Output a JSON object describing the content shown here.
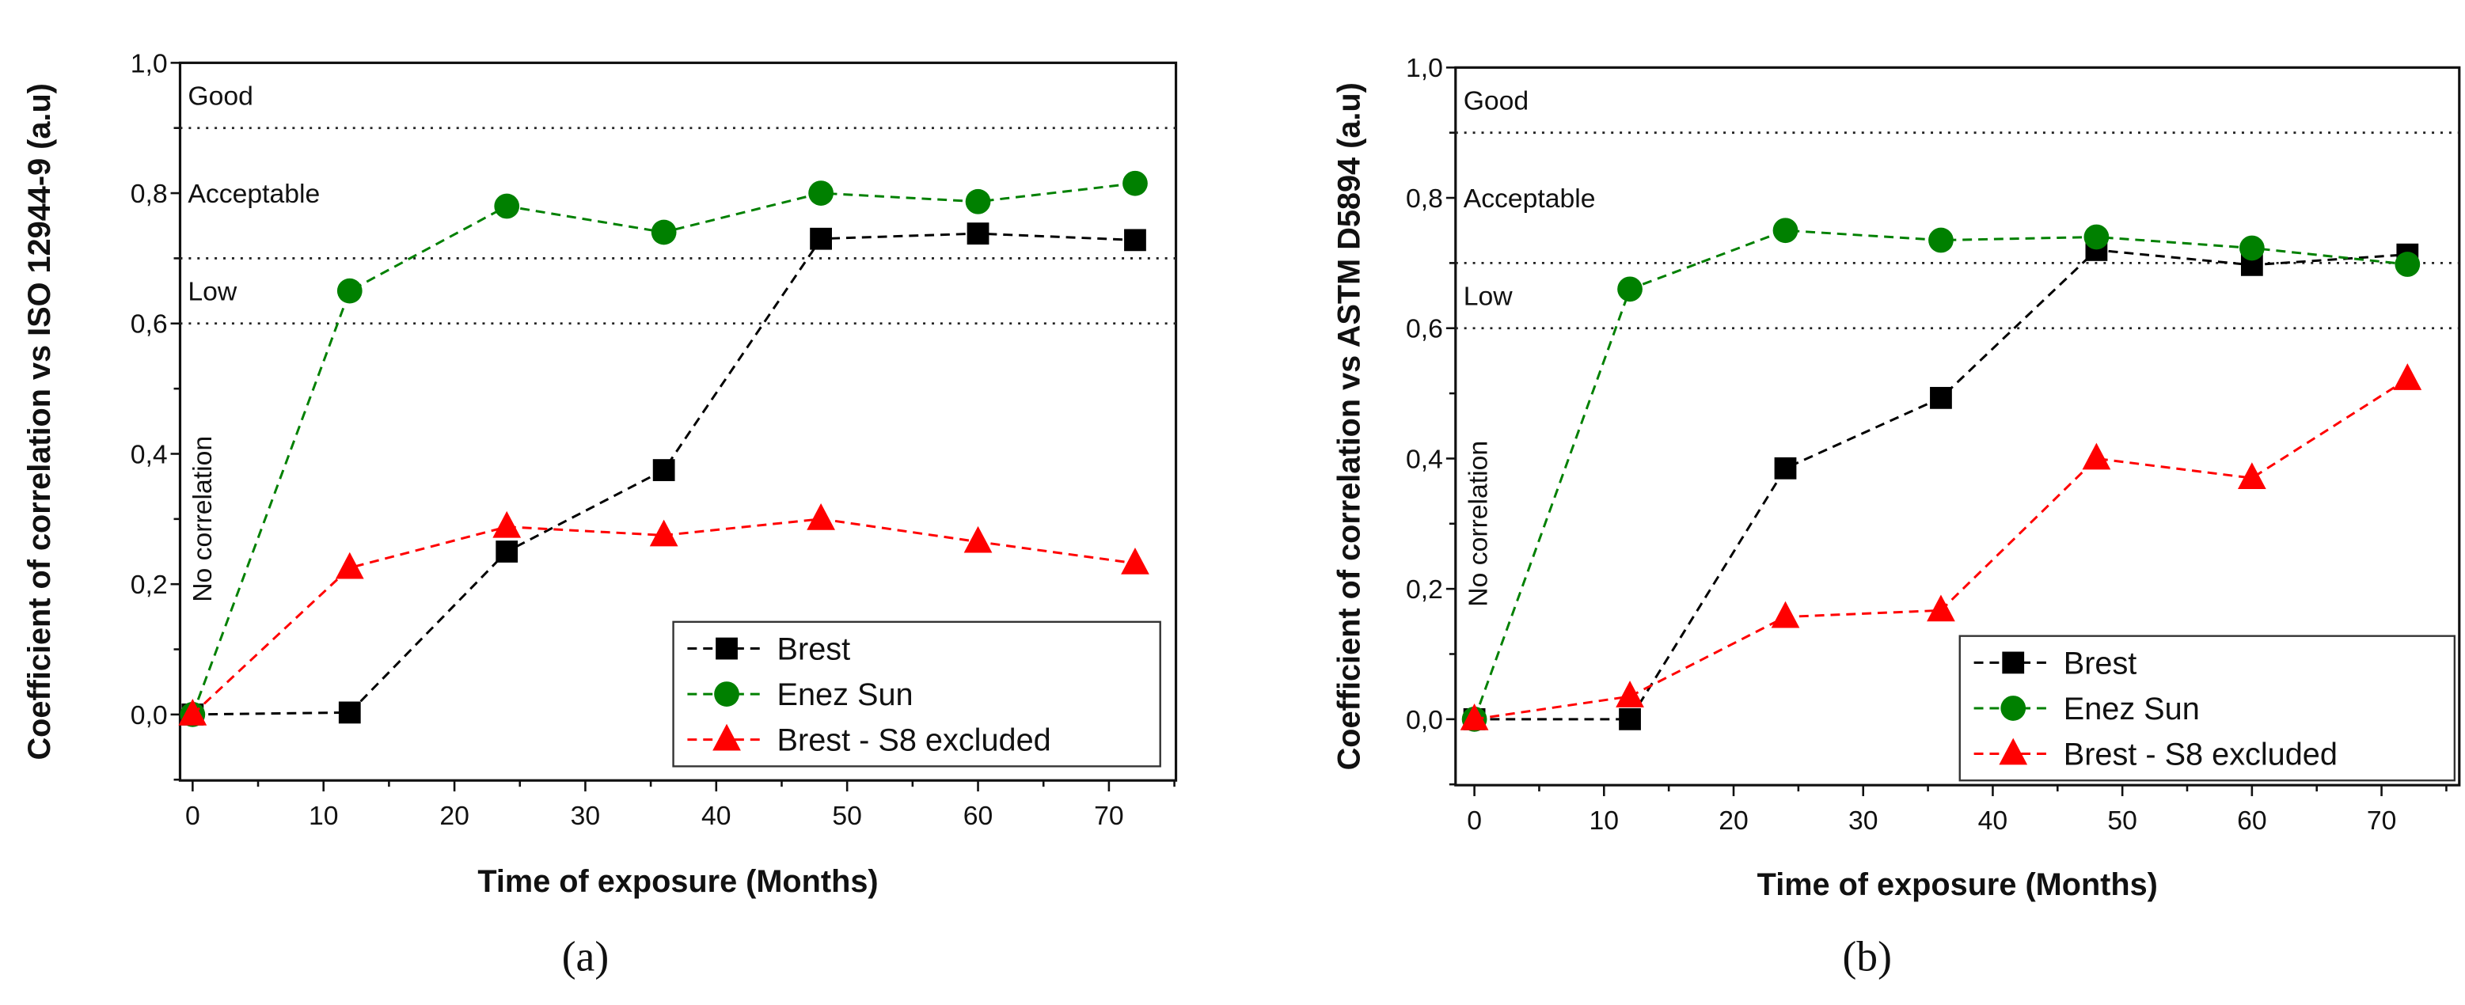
{
  "chart_data": [
    {
      "type": "line",
      "panel_label": "(a)",
      "xlabel": "Time of exposure (Months)",
      "ylabel": "Coefficient of correlation vs ISO 12944-9 (a.u)",
      "xlim": [
        -1,
        75
      ],
      "ylim": [
        -0.1,
        1.0
      ],
      "x_ticks": [
        0,
        10,
        20,
        30,
        40,
        50,
        60,
        70
      ],
      "x_tick_labels": [
        "0",
        "10",
        "20",
        "30",
        "40",
        "50",
        "60",
        "70"
      ],
      "y_ticks": [
        0.0,
        0.2,
        0.4,
        0.6,
        0.8,
        1.0
      ],
      "y_tick_labels": [
        "0,0",
        "0,2",
        "0,4",
        "0,6",
        "0,8",
        "1,0"
      ],
      "thresholds": [
        0.9,
        0.7,
        0.6
      ],
      "regions": [
        {
          "label": "Good",
          "y": 0.95
        },
        {
          "label": "Acceptable",
          "y": 0.8
        },
        {
          "label": "Low",
          "y": 0.65
        },
        {
          "label": "No correlation",
          "y": 0.3
        }
      ],
      "legend_position": "bottom-right",
      "x": [
        0,
        12,
        24,
        36,
        48,
        60,
        72
      ],
      "series": [
        {
          "name": "Brest",
          "color": "#000000",
          "marker": "square",
          "values": [
            0.0,
            0.003,
            0.25,
            0.375,
            0.73,
            0.738,
            0.728
          ]
        },
        {
          "name": "Enez Sun",
          "color": "#008000",
          "marker": "circle",
          "values": [
            0.0,
            0.65,
            0.78,
            0.74,
            0.8,
            0.787,
            0.815
          ]
        },
        {
          "name": "Brest - S8 excluded",
          "color": "#ff0000",
          "marker": "triangle",
          "values": [
            0.0,
            0.225,
            0.288,
            0.275,
            0.3,
            0.265,
            0.232
          ]
        }
      ]
    },
    {
      "type": "line",
      "panel_label": "(b)",
      "xlabel": "Time of exposure (Months)",
      "ylabel": "Coefficient of correlation vs ASTM D5894 (a.u)",
      "xlim": [
        -1,
        75
      ],
      "ylim": [
        -0.1,
        1.0
      ],
      "x_ticks": [
        0,
        10,
        20,
        30,
        40,
        50,
        60,
        70
      ],
      "x_tick_labels": [
        "0",
        "10",
        "20",
        "30",
        "40",
        "50",
        "60",
        "70"
      ],
      "y_ticks": [
        0.0,
        0.2,
        0.4,
        0.6,
        0.8,
        1.0
      ],
      "y_tick_labels": [
        "0,0",
        "0,2",
        "0,4",
        "0,6",
        "0,8",
        "1,0"
      ],
      "thresholds": [
        0.9,
        0.7,
        0.6
      ],
      "regions": [
        {
          "label": "Good",
          "y": 0.95
        },
        {
          "label": "Acceptable",
          "y": 0.8
        },
        {
          "label": "Low",
          "y": 0.65
        },
        {
          "label": "No correlation",
          "y": 0.3
        }
      ],
      "legend_position": "bottom-right",
      "x": [
        0,
        12,
        24,
        36,
        48,
        60,
        72
      ],
      "series": [
        {
          "name": "Brest",
          "color": "#000000",
          "marker": "square",
          "values": [
            0.0,
            0.0,
            0.385,
            0.493,
            0.72,
            0.697,
            0.713
          ]
        },
        {
          "name": "Enez Sun",
          "color": "#008000",
          "marker": "circle",
          "values": [
            0.0,
            0.66,
            0.75,
            0.735,
            0.74,
            0.723,
            0.698
          ]
        },
        {
          "name": "Brest - S8 excluded",
          "color": "#ff0000",
          "marker": "triangle",
          "values": [
            0.0,
            0.035,
            0.157,
            0.167,
            0.4,
            0.37,
            0.522
          ]
        }
      ]
    }
  ]
}
